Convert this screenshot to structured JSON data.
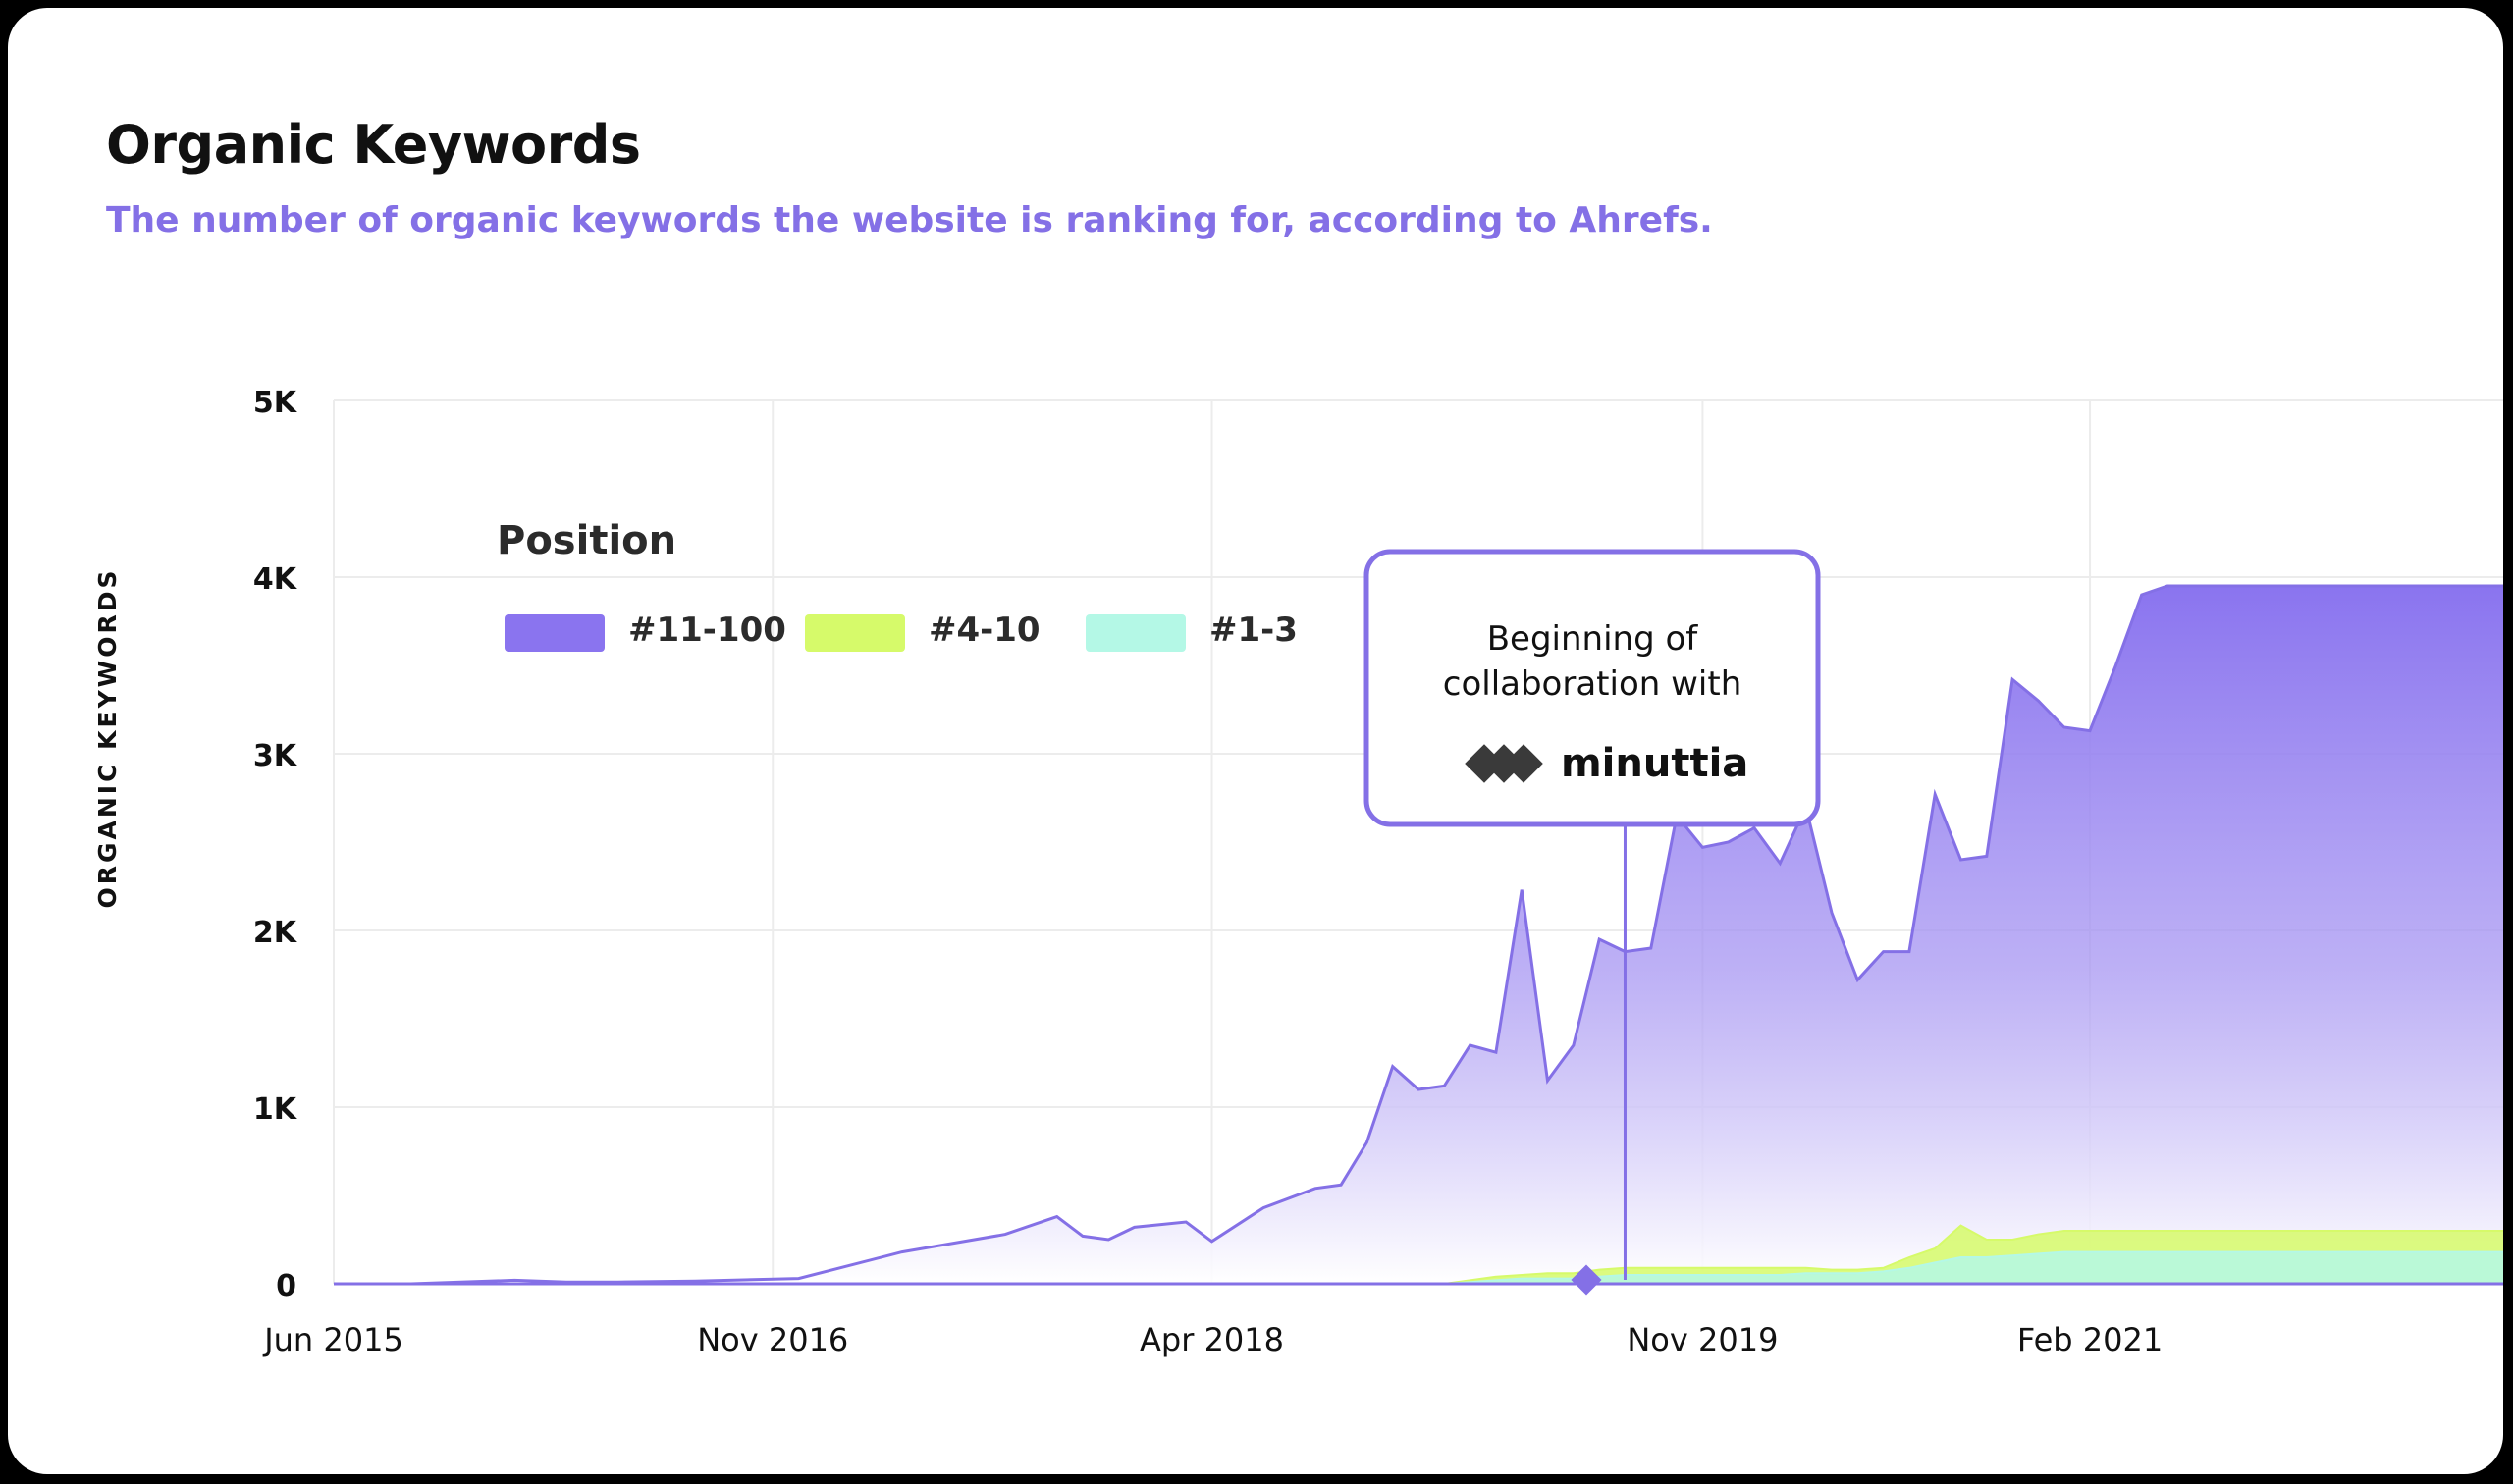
{
  "header": {
    "title": "Organic Keywords",
    "subtitle": "The number of organic keywords the website is ranking for, according to Ahrefs."
  },
  "annotation": {
    "line1": "Beginning of",
    "line2": "collaboration with",
    "brand": "minuttia",
    "date": "2019-08"
  },
  "colors": {
    "top100": "#8a74ef",
    "top10": "#d6fa6a",
    "top3": "#b4f8e6",
    "accent": "#8470e6",
    "grid": "#ececec"
  },
  "chart_data": {
    "type": "area",
    "ylabel": "ORGANIC KEYWORDS",
    "legend_title": "Position",
    "legend_position": "top-left",
    "grid": true,
    "xlim": [
      "2015-06",
      "2022-06"
    ],
    "ylim": [
      0,
      5000
    ],
    "y_ticks": [
      {
        "value": 0,
        "label": "0"
      },
      {
        "value": 1000,
        "label": "1K"
      },
      {
        "value": 2000,
        "label": "2K"
      },
      {
        "value": 3000,
        "label": "3K"
      },
      {
        "value": 4000,
        "label": "4K"
      },
      {
        "value": 5000,
        "label": "5K"
      }
    ],
    "x_ticks": [
      {
        "date": "2015-06",
        "label": "Jun 2015"
      },
      {
        "date": "2016-11",
        "label": "Nov 2016"
      },
      {
        "date": "2018-04",
        "label": "Apr 2018"
      },
      {
        "date": "2019-11",
        "label": "Nov 2019"
      },
      {
        "date": "2021-02",
        "label": "Feb 2021"
      }
    ],
    "x": [
      "2015-06",
      "2015-09",
      "2016-01",
      "2016-03",
      "2016-05",
      "2016-08",
      "2016-12",
      "2017-04",
      "2017-06",
      "2017-08",
      "2017-10",
      "2017-11",
      "2017-12",
      "2018-01",
      "2018-03",
      "2018-04",
      "2018-06",
      "2018-08",
      "2018-09",
      "2018-10",
      "2018-11",
      "2018-12",
      "2019-01",
      "2019-02",
      "2019-03",
      "2019-04",
      "2019-05",
      "2019-06",
      "2019-07",
      "2019-08",
      "2019-09",
      "2019-10",
      "2019-11",
      "2019-12",
      "2020-01",
      "2020-02",
      "2020-03",
      "2020-04",
      "2020-05",
      "2020-06",
      "2020-07",
      "2020-08",
      "2020-09",
      "2020-10",
      "2020-11",
      "2020-12",
      "2021-01",
      "2021-02",
      "2021-03",
      "2021-04",
      "2021-05",
      "2021-06",
      "2021-07",
      "2021-08",
      "2021-09",
      "2021-10",
      "2021-11",
      "2021-12",
      "2022-01",
      "2022-02",
      "2022-03",
      "2022-04",
      "2022-05",
      "2022-06"
    ],
    "series": [
      {
        "name": "#11-100",
        "values": [
          0,
          0,
          20,
          10,
          10,
          15,
          30,
          180,
          230,
          280,
          380,
          270,
          250,
          320,
          350,
          240,
          430,
          540,
          560,
          800,
          1230,
          1100,
          1120,
          1350,
          1310,
          2230,
          1150,
          1350,
          1950,
          1880,
          1900,
          2650,
          2470,
          2500,
          2580,
          2380,
          2700,
          2100,
          1720,
          1880,
          1880,
          2770,
          2400,
          2420,
          3420,
          3300,
          3150,
          3130,
          3500,
          3900,
          3950,
          3950,
          3950,
          3950,
          3950,
          3950,
          3950,
          3950,
          3950,
          3950,
          3950,
          3950,
          3950,
          3950
        ]
      },
      {
        "name": "#4-10",
        "values": [
          0,
          0,
          0,
          0,
          0,
          0,
          0,
          0,
          0,
          0,
          0,
          0,
          0,
          0,
          0,
          0,
          0,
          0,
          0,
          0,
          0,
          0,
          0,
          20,
          40,
          50,
          60,
          60,
          80,
          90,
          90,
          90,
          90,
          90,
          90,
          90,
          90,
          80,
          80,
          90,
          150,
          200,
          330,
          250,
          250,
          280,
          300,
          300,
          300,
          300,
          300,
          300,
          300,
          300,
          300,
          300,
          300,
          300,
          300,
          300,
          300,
          300,
          300,
          300
        ]
      },
      {
        "name": "#1-3",
        "values": [
          0,
          0,
          0,
          0,
          0,
          0,
          0,
          0,
          0,
          0,
          0,
          0,
          0,
          0,
          0,
          0,
          0,
          0,
          0,
          0,
          0,
          0,
          0,
          10,
          20,
          30,
          30,
          30,
          40,
          50,
          50,
          50,
          50,
          50,
          50,
          50,
          60,
          60,
          60,
          70,
          90,
          120,
          150,
          150,
          160,
          170,
          180,
          180,
          180,
          180,
          180,
          180,
          180,
          180,
          180,
          180,
          180,
          180,
          180,
          180,
          180,
          180,
          180,
          180
        ]
      }
    ]
  }
}
